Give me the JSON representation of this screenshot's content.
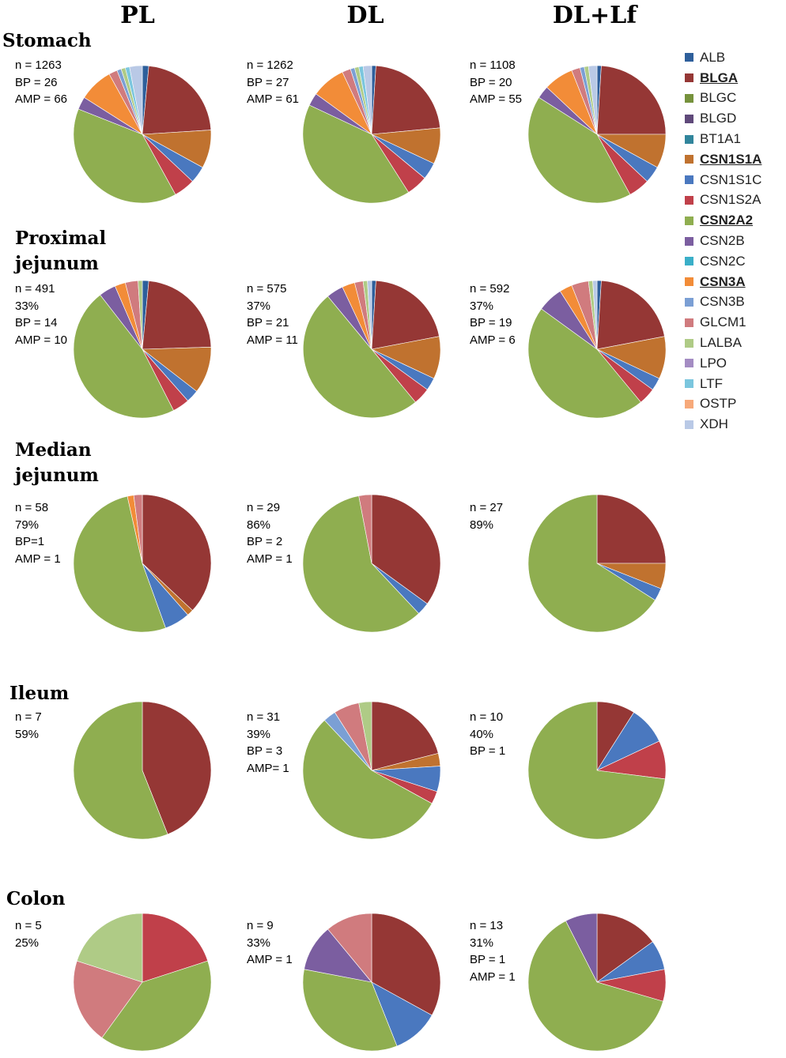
{
  "figure": {
    "column_headers": [
      "PL",
      "DL",
      "DL+Lf"
    ]
  },
  "legend": [
    {
      "name": "ALB",
      "color": "#2E5F9B",
      "highlight": false
    },
    {
      "name": "BLGA",
      "color": "#953735",
      "highlight": true
    },
    {
      "name": "BLGC",
      "color": "#76923C",
      "highlight": false
    },
    {
      "name": "BLGD",
      "color": "#5F497A",
      "highlight": false
    },
    {
      "name": "BT1A1",
      "color": "#31859C",
      "highlight": false
    },
    {
      "name": "CSN1S1A",
      "color": "#C0722F",
      "highlight": true
    },
    {
      "name": "CSN1S1C",
      "color": "#4A78BF",
      "highlight": false
    },
    {
      "name": "CSN1S2A",
      "color": "#C0404A",
      "highlight": false
    },
    {
      "name": "CSN2A2",
      "color": "#8FAE50",
      "highlight": true
    },
    {
      "name": "CSN2B",
      "color": "#7B5EA0",
      "highlight": false
    },
    {
      "name": "CSN2C",
      "color": "#3AAFC8",
      "highlight": false
    },
    {
      "name": "CSN3A",
      "color": "#F28C38",
      "highlight": true
    },
    {
      "name": "CSN3B",
      "color": "#7B9FD4",
      "highlight": false
    },
    {
      "name": "GLCM1",
      "color": "#D07B7E",
      "highlight": false
    },
    {
      "name": "LALBA",
      "color": "#AFCB86",
      "highlight": false
    },
    {
      "name": "LPO",
      "color": "#A48CC3",
      "highlight": false
    },
    {
      "name": "LTF",
      "color": "#7BC6DE",
      "highlight": false
    },
    {
      "name": "OSTP",
      "color": "#F7A97A",
      "highlight": false
    },
    {
      "name": "XDH",
      "color": "#B9C9E6",
      "highlight": false
    }
  ],
  "rows": [
    {
      "title": [
        "Stomach"
      ],
      "cells": [
        {
          "stats": [
            "n = 1263",
            "BP = 26",
            "AMP = 66"
          ]
        },
        {
          "stats": [
            "n = 1262",
            "BP = 27",
            "AMP = 61"
          ]
        },
        {
          "stats": [
            "n = 1108",
            "BP = 20",
            "AMP = 55"
          ]
        }
      ]
    },
    {
      "title": [
        "Proximal",
        "jejunum"
      ],
      "cells": [
        {
          "stats": [
            "n = 491",
            "33%",
            "BP = 14",
            "AMP = 10"
          ]
        },
        {
          "stats": [
            "n = 575",
            "37%",
            "BP = 21",
            "AMP = 11"
          ]
        },
        {
          "stats": [
            "n = 592",
            "37%",
            "BP = 19",
            "AMP = 6"
          ]
        }
      ]
    },
    {
      "title": [
        "Median",
        "jejunum"
      ],
      "cells": [
        {
          "stats": [
            "n = 58",
            "79%",
            "BP=1",
            "AMP = 1"
          ]
        },
        {
          "stats": [
            "n = 29",
            "86%",
            "BP = 2",
            "AMP = 1"
          ]
        },
        {
          "stats": [
            "n = 27",
            "89%"
          ]
        }
      ]
    },
    {
      "title": [
        "Ileum"
      ],
      "cells": [
        {
          "stats": [
            "n = 7",
            "59%"
          ]
        },
        {
          "stats": [
            "n = 31",
            "39%",
            "BP = 3",
            "AMP= 1"
          ]
        },
        {
          "stats": [
            "n = 10",
            "40%",
            "BP = 1"
          ]
        }
      ]
    },
    {
      "title": [
        "Colon"
      ],
      "cells": [
        {
          "stats": [
            "n = 5",
            "25%"
          ]
        },
        {
          "stats": [
            "n = 9",
            "33%",
            "AMP = 1"
          ]
        },
        {
          "stats": [
            "n = 13",
            "31%",
            "BP = 1",
            "AMP = 1"
          ]
        }
      ]
    }
  ],
  "chart_data": {
    "type": "pie",
    "title": "",
    "note": "Pie slices in percent of peptides per protein, clockwise from 12 o'clock; estimated from the figure",
    "pies": [
      {
        "row": "Stomach",
        "column": "PL",
        "slices": [
          {
            "protein": "ALB",
            "value": 1.5
          },
          {
            "protein": "BLGA",
            "value": 22.5
          },
          {
            "protein": "CSN1S1A",
            "value": 9
          },
          {
            "protein": "CSN1S1C",
            "value": 4
          },
          {
            "protein": "CSN1S2A",
            "value": 5
          },
          {
            "protein": "CSN2A2",
            "value": 39
          },
          {
            "protein": "CSN2B",
            "value": 3
          },
          {
            "protein": "CSN3A",
            "value": 8
          },
          {
            "protein": "GLCM1",
            "value": 2
          },
          {
            "protein": "CSN3B",
            "value": 1
          },
          {
            "protein": "LALBA",
            "value": 1
          },
          {
            "protein": "LTF",
            "value": 1
          },
          {
            "protein": "XDH",
            "value": 3
          }
        ]
      },
      {
        "row": "Stomach",
        "column": "DL",
        "slices": [
          {
            "protein": "ALB",
            "value": 1
          },
          {
            "protein": "BLGA",
            "value": 22.5
          },
          {
            "protein": "CSN1S1A",
            "value": 8.5
          },
          {
            "protein": "CSN1S1C",
            "value": 4
          },
          {
            "protein": "CSN1S2A",
            "value": 5
          },
          {
            "protein": "CSN2A2",
            "value": 41
          },
          {
            "protein": "CSN2B",
            "value": 3
          },
          {
            "protein": "CSN3A",
            "value": 8
          },
          {
            "protein": "GLCM1",
            "value": 2
          },
          {
            "protein": "CSN3B",
            "value": 1
          },
          {
            "protein": "LALBA",
            "value": 1
          },
          {
            "protein": "LTF",
            "value": 1
          },
          {
            "protein": "XDH",
            "value": 2
          }
        ]
      },
      {
        "row": "Stomach",
        "column": "DL+Lf",
        "slices": [
          {
            "protein": "ALB",
            "value": 1
          },
          {
            "protein": "BLGA",
            "value": 24
          },
          {
            "protein": "CSN1S1A",
            "value": 8
          },
          {
            "protein": "CSN1S1C",
            "value": 4
          },
          {
            "protein": "CSN1S2A",
            "value": 5
          },
          {
            "protein": "CSN2A2",
            "value": 42
          },
          {
            "protein": "CSN2B",
            "value": 3
          },
          {
            "protein": "CSN3A",
            "value": 7
          },
          {
            "protein": "GLCM1",
            "value": 2
          },
          {
            "protein": "CSN3B",
            "value": 1
          },
          {
            "protein": "LALBA",
            "value": 1
          },
          {
            "protein": "XDH",
            "value": 2
          }
        ]
      },
      {
        "row": "Proximal jejunum",
        "column": "PL",
        "slices": [
          {
            "protein": "ALB",
            "value": 1.5
          },
          {
            "protein": "BLGA",
            "value": 23
          },
          {
            "protein": "CSN1S1A",
            "value": 11
          },
          {
            "protein": "CSN1S1C",
            "value": 3
          },
          {
            "protein": "CSN1S2A",
            "value": 4
          },
          {
            "protein": "CSN2A2",
            "value": 47
          },
          {
            "protein": "CSN2B",
            "value": 4
          },
          {
            "protein": "CSN3A",
            "value": 2.5
          },
          {
            "protein": "GLCM1",
            "value": 3
          },
          {
            "protein": "LALBA",
            "value": 1
          }
        ]
      },
      {
        "row": "Proximal jejunum",
        "column": "DL",
        "slices": [
          {
            "protein": "ALB",
            "value": 1
          },
          {
            "protein": "BLGA",
            "value": 21
          },
          {
            "protein": "CSN1S1A",
            "value": 10
          },
          {
            "protein": "CSN1S1C",
            "value": 3
          },
          {
            "protein": "CSN1S2A",
            "value": 4
          },
          {
            "protein": "CSN2A2",
            "value": 50
          },
          {
            "protein": "CSN2B",
            "value": 4
          },
          {
            "protein": "CSN3A",
            "value": 3
          },
          {
            "protein": "GLCM1",
            "value": 2
          },
          {
            "protein": "LALBA",
            "value": 1
          },
          {
            "protein": "XDH",
            "value": 1
          }
        ]
      },
      {
        "row": "Proximal jejunum",
        "column": "DL+Lf",
        "slices": [
          {
            "protein": "ALB",
            "value": 1
          },
          {
            "protein": "BLGA",
            "value": 21
          },
          {
            "protein": "CSN1S1A",
            "value": 10
          },
          {
            "protein": "CSN1S1C",
            "value": 3
          },
          {
            "protein": "CSN1S2A",
            "value": 4
          },
          {
            "protein": "CSN2A2",
            "value": 46
          },
          {
            "protein": "CSN2B",
            "value": 6
          },
          {
            "protein": "CSN3A",
            "value": 3
          },
          {
            "protein": "GLCM1",
            "value": 4
          },
          {
            "protein": "LALBA",
            "value": 1
          },
          {
            "protein": "XDH",
            "value": 1
          }
        ]
      },
      {
        "row": "Median jejunum",
        "column": "PL",
        "slices": [
          {
            "protein": "BLGA",
            "value": 37
          },
          {
            "protein": "CSN1S1A",
            "value": 1.5
          },
          {
            "protein": "CSN1S1C",
            "value": 6
          },
          {
            "protein": "CSN2A2",
            "value": 52
          },
          {
            "protein": "CSN3A",
            "value": 1.5
          },
          {
            "protein": "GLCM1",
            "value": 2
          }
        ]
      },
      {
        "row": "Median jejunum",
        "column": "DL",
        "slices": [
          {
            "protein": "BLGA",
            "value": 35
          },
          {
            "protein": "CSN1S1C",
            "value": 3
          },
          {
            "protein": "CSN2A2",
            "value": 59
          },
          {
            "protein": "GLCM1",
            "value": 3
          }
        ]
      },
      {
        "row": "Median jejunum",
        "column": "DL+Lf",
        "slices": [
          {
            "protein": "BLGA",
            "value": 25
          },
          {
            "protein": "CSN1S1A",
            "value": 6
          },
          {
            "protein": "CSN1S1C",
            "value": 3
          },
          {
            "protein": "CSN2A2",
            "value": 66
          }
        ]
      },
      {
        "row": "Ileum",
        "column": "PL",
        "slices": [
          {
            "protein": "BLGA",
            "value": 44
          },
          {
            "protein": "CSN2A2",
            "value": 56
          }
        ]
      },
      {
        "row": "Ileum",
        "column": "DL",
        "slices": [
          {
            "protein": "BLGA",
            "value": 21
          },
          {
            "protein": "CSN1S1A",
            "value": 3
          },
          {
            "protein": "CSN1S1C",
            "value": 6
          },
          {
            "protein": "CSN1S2A",
            "value": 3
          },
          {
            "protein": "CSN2A2",
            "value": 55
          },
          {
            "protein": "CSN3B",
            "value": 3
          },
          {
            "protein": "GLCM1",
            "value": 6
          },
          {
            "protein": "LALBA",
            "value": 3
          }
        ]
      },
      {
        "row": "Ileum",
        "column": "DL+Lf",
        "slices": [
          {
            "protein": "BLGA",
            "value": 9
          },
          {
            "protein": "CSN1S1C",
            "value": 9
          },
          {
            "protein": "CSN1S2A",
            "value": 9
          },
          {
            "protein": "CSN2A2",
            "value": 73
          }
        ]
      },
      {
        "row": "Colon",
        "column": "PL",
        "slices": [
          {
            "protein": "CSN1S2A",
            "value": 20
          },
          {
            "protein": "CSN2A2",
            "value": 40
          },
          {
            "protein": "GLCM1",
            "value": 20
          },
          {
            "protein": "LALBA",
            "value": 20
          }
        ]
      },
      {
        "row": "Colon",
        "column": "DL",
        "slices": [
          {
            "protein": "BLGA",
            "value": 33
          },
          {
            "protein": "CSN1S1C",
            "value": 11
          },
          {
            "protein": "CSN2A2",
            "value": 34
          },
          {
            "protein": "CSN2B",
            "value": 11
          },
          {
            "protein": "GLCM1",
            "value": 11
          }
        ]
      },
      {
        "row": "Colon",
        "column": "DL+Lf",
        "slices": [
          {
            "protein": "BLGA",
            "value": 15
          },
          {
            "protein": "CSN1S1C",
            "value": 7
          },
          {
            "protein": "CSN1S2A",
            "value": 7.5
          },
          {
            "protein": "CSN2A2",
            "value": 63
          },
          {
            "protein": "CSN2B",
            "value": 7.5
          }
        ]
      }
    ]
  }
}
